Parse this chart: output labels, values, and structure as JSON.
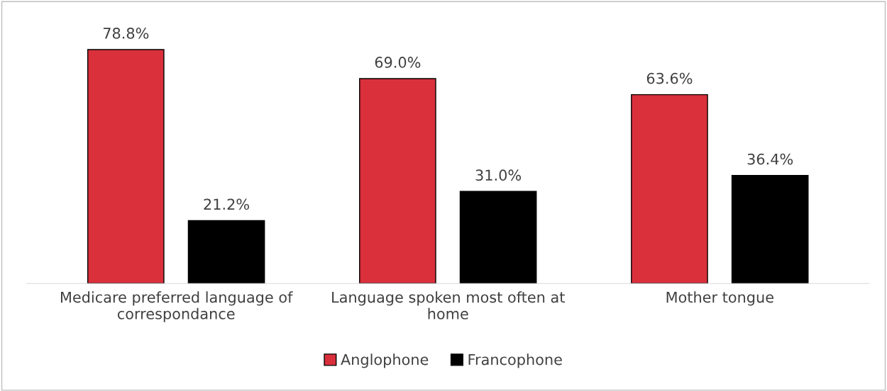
{
  "chart_data": {
    "type": "bar",
    "categories": [
      "Medicare preferred language of correspondance",
      "Language spoken most often at home",
      "Mother tongue"
    ],
    "series": [
      {
        "name": "Anglophone",
        "color": "#d9303c",
        "values": [
          78.8,
          69.0,
          63.6
        ],
        "value_labels": [
          "78.8%",
          "69.0%",
          "63.6%"
        ]
      },
      {
        "name": "Francophone",
        "color": "#000000",
        "values": [
          21.2,
          31.0,
          36.4
        ],
        "value_labels": [
          "21.2%",
          "31.0%",
          "36.4%"
        ]
      }
    ],
    "legend": "bottom",
    "grid": false
  }
}
